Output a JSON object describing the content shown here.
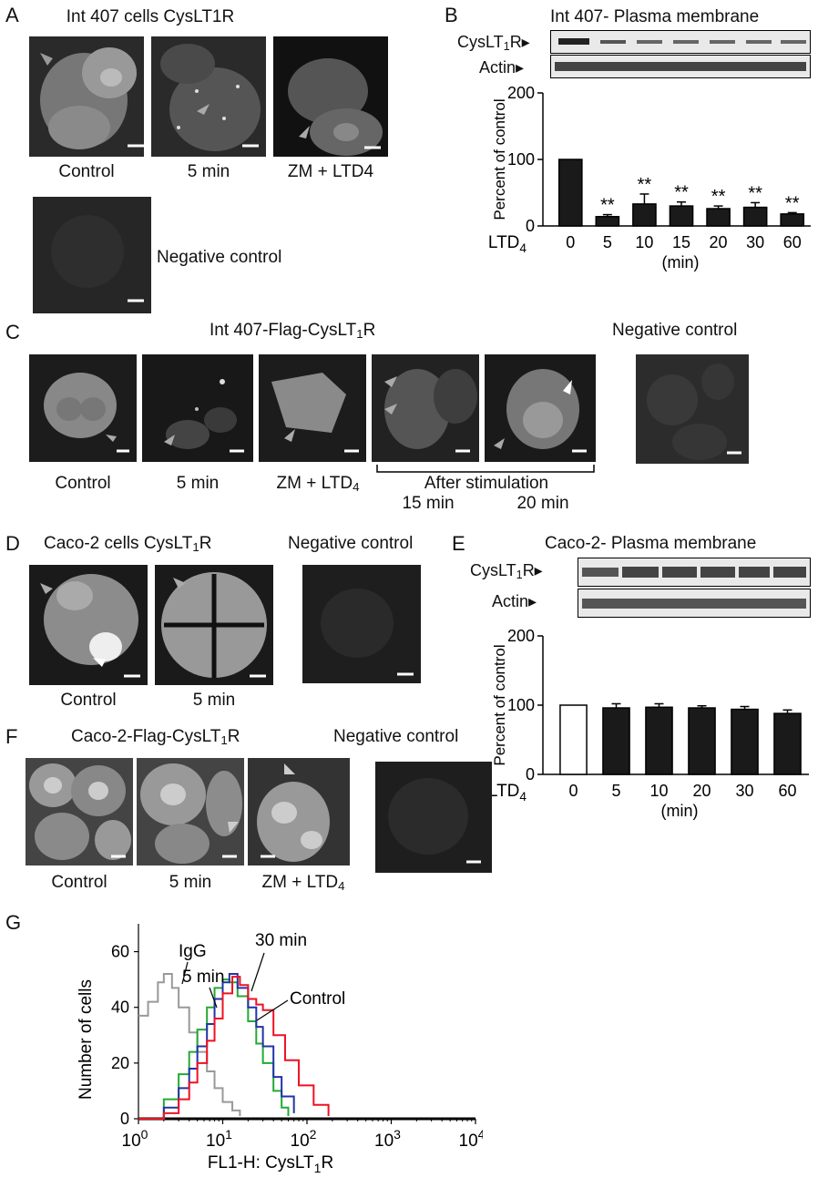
{
  "panels": {
    "A": {
      "letter": "A",
      "title": "Int 407 cells CysLT1R",
      "captions": [
        "Control",
        "5 min",
        "ZM + LTD4"
      ],
      "negative": "Negative control"
    },
    "B": {
      "letter": "B",
      "title": "Int 407- Plasma membrane",
      "blot_labels": [
        "CysLT1R",
        "Actin"
      ]
    },
    "C": {
      "letter": "C",
      "title": "Int 407-Flag-CysLT1R",
      "negative_title": "Negative control",
      "captions": [
        "Control",
        "5 min",
        "ZM + LTD4"
      ],
      "after_stim": "After stimulation",
      "sub_captions": [
        "15 min",
        "20 min"
      ]
    },
    "D": {
      "letter": "D",
      "title": "Caco-2 cells CysLT1R",
      "negative_title": "Negative control",
      "captions": [
        "Control",
        "5 min"
      ]
    },
    "E": {
      "letter": "E",
      "title": "Caco-2- Plasma membrane",
      "blot_labels": [
        "CysLT1R",
        "Actin"
      ]
    },
    "F": {
      "letter": "F",
      "title": "Caco-2-Flag-CysLT1R",
      "negative_title": "Negative control",
      "captions": [
        "Control",
        "5 min",
        "ZM + LTD4"
      ]
    },
    "G": {
      "letter": "G"
    }
  },
  "chart_data": [
    {
      "panel": "B",
      "type": "bar",
      "categories": [
        "0",
        "5",
        "10",
        "15",
        "20",
        "30",
        "60"
      ],
      "values": [
        100,
        14,
        33,
        30,
        26,
        28,
        18
      ],
      "errors": [
        0,
        3,
        15,
        6,
        4,
        7,
        2
      ],
      "significance": [
        "",
        "**",
        "**",
        "**",
        "**",
        "**",
        "**"
      ],
      "fill": [
        "#1a1a1a",
        "#1a1a1a",
        "#1a1a1a",
        "#1a1a1a",
        "#1a1a1a",
        "#1a1a1a",
        "#1a1a1a"
      ],
      "xlabel_prefix": "LTD4",
      "xlabel_unit": "(min)",
      "ylabel": "Percent of control",
      "ylim": [
        0,
        200
      ],
      "yticks": [
        0,
        100,
        200
      ]
    },
    {
      "panel": "E",
      "type": "bar",
      "categories": [
        "0",
        "5",
        "10",
        "20",
        "30",
        "60"
      ],
      "values": [
        100,
        96,
        97,
        96,
        94,
        88
      ],
      "errors": [
        0,
        6,
        5,
        3,
        4,
        5
      ],
      "fill": [
        "#ffffff",
        "#1a1a1a",
        "#1a1a1a",
        "#1a1a1a",
        "#1a1a1a",
        "#1a1a1a"
      ],
      "xlabel_prefix": "LTD4",
      "xlabel_unit": "(min)",
      "ylabel": "Percent of control",
      "ylim": [
        0,
        200
      ],
      "yticks": [
        0,
        100,
        200
      ]
    },
    {
      "panel": "G",
      "type": "line",
      "xscale": "log",
      "xlim": [
        1,
        10000
      ],
      "ylim": [
        0,
        70
      ],
      "yticks": [
        0,
        20,
        40,
        60
      ],
      "xticks": [
        "10^0",
        "10^1",
        "10^2",
        "10^3",
        "10^4"
      ],
      "xlabel": "FL1-H: CysLT1R",
      "ylabel": "Number of cells",
      "series": [
        {
          "name": "IgG",
          "color": "#999999",
          "x": [
            1,
            1.3,
            1.7,
            2,
            2.5,
            3,
            4,
            5,
            6.5,
            8,
            10,
            13,
            16
          ],
          "y": [
            37,
            42,
            49,
            52,
            47,
            40,
            31,
            24,
            17,
            11,
            6,
            3,
            1
          ]
        },
        {
          "name": "5 min",
          "color": "#22aa33",
          "x": [
            1,
            2,
            3,
            4,
            5,
            6.5,
            8,
            10,
            12,
            15,
            20,
            25,
            30,
            40,
            50,
            60
          ],
          "y": [
            0,
            7,
            16,
            24,
            32,
            40,
            47,
            50,
            49,
            44,
            35,
            27,
            20,
            10,
            4,
            1
          ]
        },
        {
          "name": "30 min",
          "color": "#2233aa",
          "x": [
            1,
            2,
            3,
            4,
            5,
            6.5,
            8,
            10,
            12,
            15,
            20,
            25,
            30,
            40,
            50,
            70
          ],
          "y": [
            0,
            4,
            11,
            18,
            26,
            34,
            43,
            49,
            52,
            47,
            40,
            33,
            26,
            15,
            8,
            2
          ]
        },
        {
          "name": "Control",
          "color": "#ee1122",
          "x": [
            1,
            2,
            3,
            4,
            5,
            6.5,
            8,
            10,
            13,
            16,
            20,
            25,
            30,
            40,
            55,
            80,
            120,
            180
          ],
          "y": [
            0,
            2,
            7,
            13,
            20,
            28,
            36,
            45,
            51,
            48,
            43,
            41,
            39,
            30,
            21,
            12,
            5,
            1
          ]
        }
      ]
    }
  ]
}
